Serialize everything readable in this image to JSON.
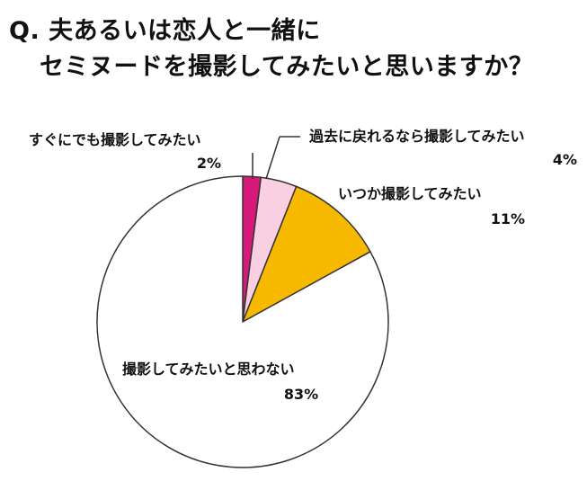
{
  "title": {
    "line1": "Q. 夫あるいは恋人と一緒に",
    "line2": "セミヌードを撮影してみたいと思いますか？"
  },
  "colors": {
    "slice_1": "#d6197a",
    "slice_2": "#f9cfe1",
    "slice_3": "#f7b900",
    "slice_4": "#ffffff",
    "outline": "#333333"
  },
  "chart_data": {
    "type": "pie",
    "title": "Q. 夫あるいは恋人と一緒に セミヌードを撮影してみたいと思いますか？",
    "start": "12 o'clock, clockwise",
    "slices": [
      {
        "label": "すぐにでも撮影してみたい",
        "value": 2,
        "value_label": "2%"
      },
      {
        "label": "過去に戻れるなら撮影してみたい",
        "value": 4,
        "value_label": "4%"
      },
      {
        "label": "いつか撮影してみたい",
        "value": 11,
        "value_label": "11%"
      },
      {
        "label": "撮影してみたいと思わない",
        "value": 83,
        "value_label": "83%"
      }
    ]
  }
}
